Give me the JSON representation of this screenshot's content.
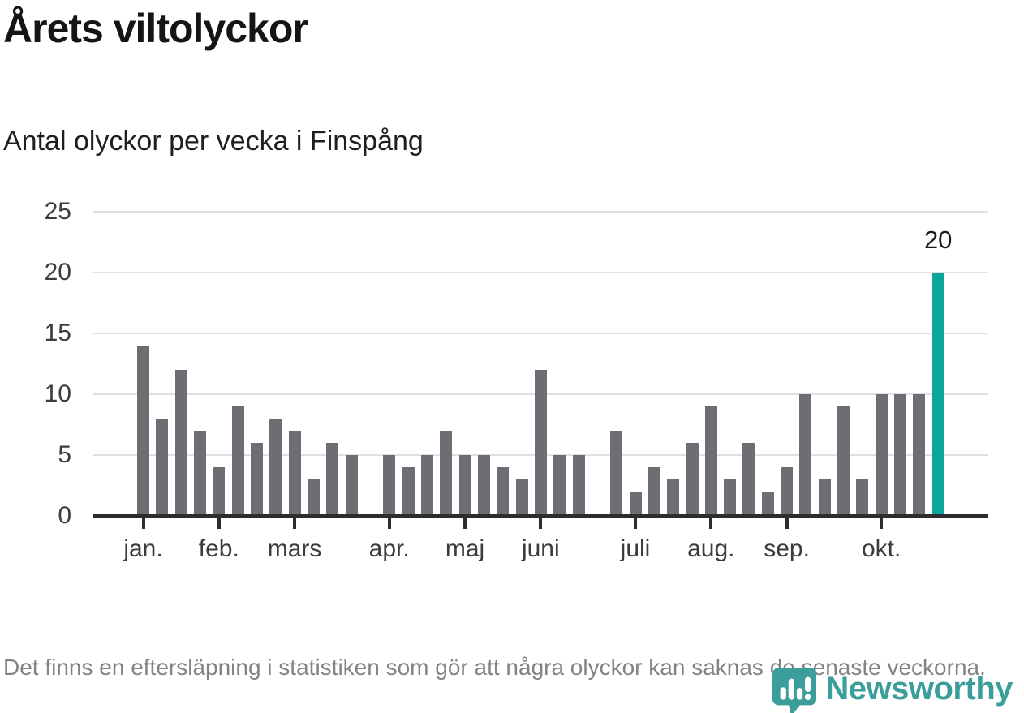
{
  "header": {
    "title": "Årets viltolyckor",
    "subtitle": "Antal olyckor per vecka i Finspång"
  },
  "chart_data": {
    "type": "bar",
    "title": "Årets viltolyckor",
    "subtitle": "Antal olyckor per vecka i Finspång",
    "x_unit": "vecka (weeks of the year, 1-43)",
    "values": [
      14,
      8,
      12,
      7,
      4,
      9,
      6,
      8,
      7,
      3,
      6,
      5,
      0,
      5,
      4,
      5,
      7,
      5,
      5,
      4,
      3,
      12,
      5,
      5,
      0,
      7,
      2,
      4,
      3,
      6,
      9,
      3,
      6,
      2,
      4,
      10,
      3,
      9,
      3,
      10,
      10,
      10,
      20
    ],
    "bar_color": "#6e6d73",
    "highlight": {
      "week": 43,
      "value": 20,
      "label": "20",
      "color": "#0ba59c"
    },
    "y_axis": {
      "ticks": [
        0,
        5,
        10,
        15,
        20,
        25
      ],
      "ylim": [
        0,
        25
      ]
    },
    "x_axis": {
      "month_ticks": [
        {
          "label": "jan.",
          "week": 1
        },
        {
          "label": "feb.",
          "week": 5
        },
        {
          "label": "mars",
          "week": 9
        },
        {
          "label": "apr.",
          "week": 14
        },
        {
          "label": "maj",
          "week": 18
        },
        {
          "label": "juni",
          "week": 22
        },
        {
          "label": "juli",
          "week": 27
        },
        {
          "label": "aug.",
          "week": 31
        },
        {
          "label": "sep.",
          "week": 35
        },
        {
          "label": "okt.",
          "week": 40
        }
      ]
    },
    "grid": true,
    "legend": "none"
  },
  "footer": {
    "note": "Det finns en eftersläpning i statistiken som gör att några olyckor kan saknas de senaste veckorna."
  },
  "branding": {
    "logo_text": "Newsworthy",
    "logo_color": "#3b9e9a"
  }
}
